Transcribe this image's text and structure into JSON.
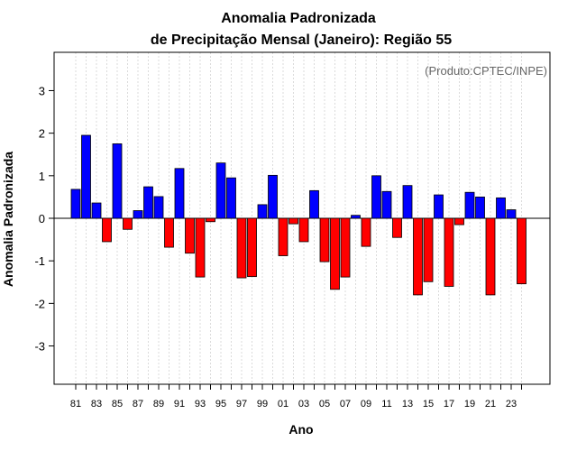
{
  "chart_data": {
    "type": "bar",
    "title_line1": "Anomalia Padronizada",
    "title_line2": "de Precipitação Mensal (Janeiro): Região 55",
    "xlabel": "Ano",
    "ylabel": "Anomalia Padronizada",
    "credit": "(Produto:CPTEC/INPE)",
    "ylim": [
      -3.9,
      3.9
    ],
    "yticks": [
      -3,
      -2,
      -1,
      0,
      1,
      2,
      3
    ],
    "ytick_labels": [
      "-3",
      "-2",
      "-1",
      "0",
      "1",
      "2",
      "3"
    ],
    "categories": [
      "81",
      "82",
      "83",
      "84",
      "85",
      "86",
      "87",
      "88",
      "89",
      "90",
      "91",
      "92",
      "93",
      "94",
      "95",
      "96",
      "97",
      "98",
      "99",
      "00",
      "01",
      "02",
      "03",
      "04",
      "05",
      "06",
      "07",
      "08",
      "09",
      "10",
      "11",
      "12",
      "13",
      "14",
      "15",
      "16",
      "17",
      "18",
      "19",
      "20",
      "21",
      "22",
      "23",
      "24"
    ],
    "xtick_labels": [
      "81",
      "83",
      "85",
      "87",
      "89",
      "91",
      "93",
      "95",
      "97",
      "99",
      "01",
      "03",
      "05",
      "07",
      "09",
      "11",
      "13",
      "15",
      "17",
      "19",
      "21",
      "23"
    ],
    "values": [
      0.68,
      1.95,
      0.36,
      -0.55,
      1.75,
      -0.26,
      0.18,
      0.74,
      0.51,
      -0.68,
      1.17,
      -0.82,
      -1.38,
      -0.08,
      1.3,
      0.95,
      -1.4,
      -1.37,
      0.32,
      1.01,
      -0.88,
      -0.13,
      -0.55,
      0.65,
      -1.02,
      -1.67,
      -1.38,
      0.07,
      -0.66,
      1.0,
      0.63,
      -0.45,
      0.77,
      -1.8,
      -1.49,
      0.55,
      -1.6,
      -0.15,
      0.61,
      0.5,
      -1.8,
      0.48,
      0.2,
      -1.54
    ],
    "colors": {
      "positive": "#0000ff",
      "negative": "#ff0000"
    },
    "grid": true
  }
}
